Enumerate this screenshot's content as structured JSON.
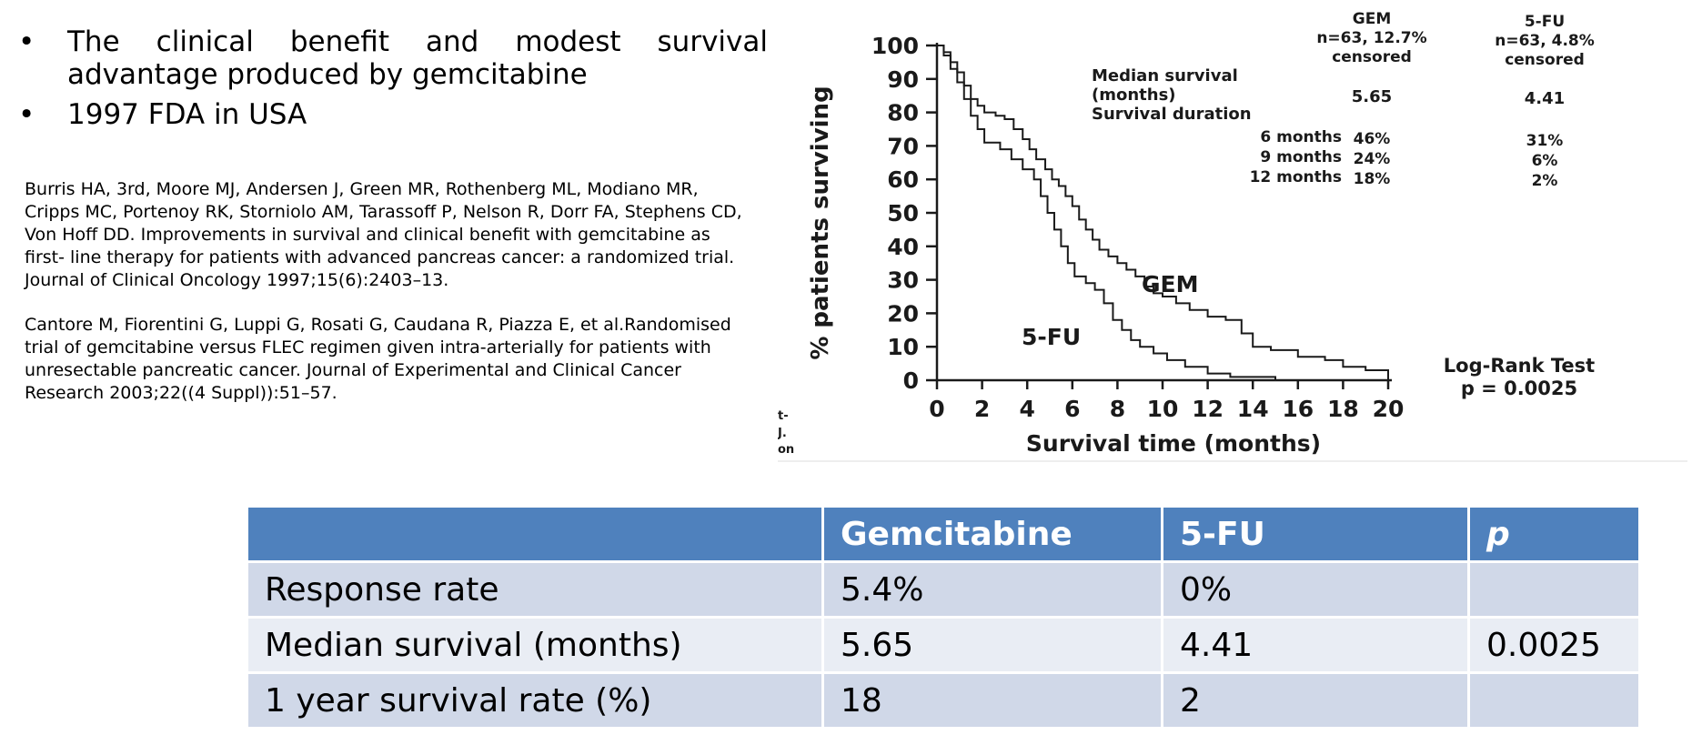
{
  "bullets": [
    "The clinical benefit and modest survival advantage produced by gemcitabine",
    "1997 FDA in USA"
  ],
  "bullet_symbol": "•",
  "references": [
    "Burris HA, 3rd, Moore MJ, Andersen J, Green MR, Rothenberg ML, Modiano MR, Cripps MC, Portenoy RK, Storniolo AM, Tarassoff P, Nelson R, Dorr FA, Stephens CD, Von Hoff DD. Improvements in survival and clinical beneﬁt with gemcitabine as ﬁrst- line therapy for patients with advanced pancreas cancer: a randomized trial. Journal of Clinical Oncology 1997;15(6):2403–13.",
    "Cantore M, Fiorentini G, Luppi G, Rosati G, Caudana R, Piazza E, et al.Randomised trial of gemcitabine versus FLEC regimen given intra-arterially for patients with unresectable pancreatic cancer. Journal of Experimental and Clinical Cancer Research 2003;22((4 Suppl)):51–57."
  ],
  "km_figure": {
    "ylabel": "% patients surviving",
    "xlabel": "Survival time (months)",
    "yticks": [
      "100",
      "90",
      "80",
      "70",
      "60",
      "50",
      "40",
      "30",
      "20",
      "10",
      "0"
    ],
    "xticks": [
      "0",
      "2",
      "4",
      "6",
      "8",
      "10",
      "12",
      "14",
      "16",
      "18",
      "20"
    ],
    "curve_labels": {
      "gem": "GEM",
      "fu": "5-FU"
    },
    "col_gem": {
      "title": "GEM",
      "n": "n=63, 12.7%",
      "censored": "censored"
    },
    "col_fu": {
      "title": "5-FU",
      "n": "n=63, 4.8%",
      "censored": "censored"
    },
    "median_label_1": "Median survival",
    "median_label_2": "(months)",
    "survival_duration_label": "Survival duration",
    "median_gem": "5.65",
    "median_fu": "4.41",
    "durations": [
      {
        "label": "6 months",
        "gem": "46%",
        "fu": "31%"
      },
      {
        "label": "9 months",
        "gem": "24%",
        "fu": "6%"
      },
      {
        "label": "12 months",
        "gem": "18%",
        "fu": "2%"
      }
    ],
    "logrank_title": "Log-Rank Test",
    "logrank_p": "p = 0.0025",
    "side_fragment": [
      "t-",
      "J.",
      "on"
    ],
    "ink_color": "#1a1a1a"
  },
  "table": {
    "headers": [
      "",
      "Gemcitabine",
      "5-FU",
      "p"
    ],
    "rows": [
      [
        "Response rate",
        "5.4%",
        "0%",
        ""
      ],
      [
        "Median survival (months)",
        "5.65",
        "4.41",
        "0.0025"
      ],
      [
        "1 year survival rate (%)",
        "18",
        "2",
        ""
      ]
    ],
    "header_color": "#4f81bd",
    "row_colors": [
      "#d0d8e8",
      "#e9edf4"
    ]
  }
}
